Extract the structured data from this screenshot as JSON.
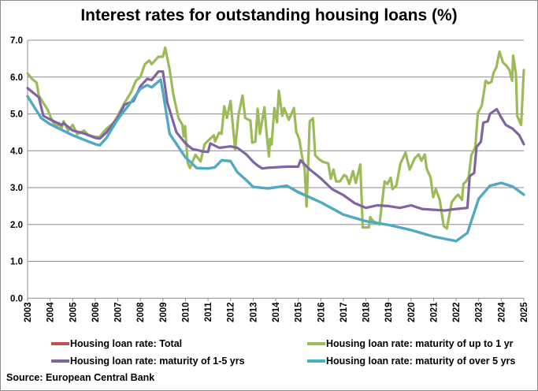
{
  "chart_data": {
    "type": "line",
    "title": "Interest rates for outstanding housing loans (%)",
    "xlabel": "",
    "ylabel": "",
    "xlim": [
      2003,
      2025
    ],
    "ylim": [
      0,
      7
    ],
    "x_ticks": [
      "2003",
      "2004",
      "2005",
      "2006",
      "2007",
      "2008",
      "2009",
      "2010",
      "2011",
      "2012",
      "2013",
      "2014",
      "2015",
      "2016",
      "2017",
      "2018",
      "2019",
      "2020",
      "2021",
      "2022",
      "2023",
      "2024",
      "2025"
    ],
    "y_ticks": [
      "0.0",
      "1.0",
      "2.0",
      "3.0",
      "4.0",
      "5.0",
      "6.0",
      "7.0"
    ],
    "grid": "horizontal",
    "legend_position": "bottom",
    "series": [
      {
        "name": "Housing loan rate: Total",
        "color": "#c0504d",
        "points": [
          [
            2003.0,
            5.48
          ],
          [
            2003.6,
            4.89
          ],
          [
            2004.0,
            4.72
          ],
          [
            2005.0,
            4.42
          ],
          [
            2006.0,
            4.18
          ],
          [
            2006.2,
            4.15
          ],
          [
            2006.5,
            4.35
          ],
          [
            2007.0,
            4.86
          ],
          [
            2007.5,
            5.25
          ],
          [
            2008.0,
            5.68
          ],
          [
            2008.3,
            5.78
          ],
          [
            2008.5,
            5.72
          ],
          [
            2008.9,
            5.93
          ],
          [
            2009.0,
            5.6
          ],
          [
            2009.3,
            4.46
          ],
          [
            2010.0,
            3.82
          ],
          [
            2010.5,
            3.53
          ],
          [
            2011.0,
            3.52
          ],
          [
            2011.3,
            3.55
          ],
          [
            2011.6,
            3.74
          ],
          [
            2012.0,
            3.72
          ],
          [
            2012.3,
            3.42
          ],
          [
            2012.7,
            3.2
          ],
          [
            2013.0,
            3.02
          ],
          [
            2013.65,
            2.98
          ],
          [
            2014.5,
            3.05
          ],
          [
            2015.0,
            2.88
          ],
          [
            2016.0,
            2.6
          ],
          [
            2017.0,
            2.27
          ],
          [
            2018.0,
            2.09
          ],
          [
            2019.0,
            1.99
          ],
          [
            2020.0,
            1.85
          ],
          [
            2021.0,
            1.67
          ],
          [
            2022.0,
            1.55
          ],
          [
            2022.5,
            1.77
          ],
          [
            2023.0,
            2.7
          ],
          [
            2023.5,
            3.05
          ],
          [
            2024.0,
            3.13
          ],
          [
            2024.5,
            3.03
          ],
          [
            2025.0,
            2.81
          ]
        ]
      },
      {
        "name": "Housing loan rate: maturity of up to 1 yr",
        "color": "#9bbb59",
        "points": [
          [
            2003.0,
            6.1
          ],
          [
            2003.2,
            5.95
          ],
          [
            2003.4,
            5.85
          ],
          [
            2003.5,
            5.5
          ],
          [
            2003.7,
            5.3
          ],
          [
            2003.9,
            5.1
          ],
          [
            2004.1,
            4.8
          ],
          [
            2004.3,
            4.65
          ],
          [
            2004.4,
            4.75
          ],
          [
            2004.5,
            4.6
          ],
          [
            2004.6,
            4.8
          ],
          [
            2004.8,
            4.55
          ],
          [
            2005.0,
            4.7
          ],
          [
            2005.2,
            4.45
          ],
          [
            2005.5,
            4.55
          ],
          [
            2005.7,
            4.42
          ],
          [
            2006.0,
            4.38
          ],
          [
            2006.2,
            4.38
          ],
          [
            2006.5,
            4.6
          ],
          [
            2006.8,
            4.75
          ],
          [
            2007.0,
            4.95
          ],
          [
            2007.3,
            5.3
          ],
          [
            2007.6,
            5.6
          ],
          [
            2007.8,
            5.9
          ],
          [
            2008.0,
            6.0
          ],
          [
            2008.2,
            6.35
          ],
          [
            2008.4,
            6.45
          ],
          [
            2008.5,
            6.35
          ],
          [
            2008.8,
            6.55
          ],
          [
            2009.0,
            6.55
          ],
          [
            2009.1,
            6.8
          ],
          [
            2009.3,
            6.2
          ],
          [
            2009.46,
            5.53
          ],
          [
            2009.69,
            4.89
          ],
          [
            2009.86,
            4.71
          ],
          [
            2009.92,
            4.39
          ],
          [
            2009.98,
            4.67
          ],
          [
            2010.1,
            3.67
          ],
          [
            2010.2,
            3.53
          ],
          [
            2010.44,
            3.89
          ],
          [
            2010.67,
            3.71
          ],
          [
            2010.85,
            4.18
          ],
          [
            2011.08,
            4.32
          ],
          [
            2011.26,
            4.42
          ],
          [
            2011.31,
            4.25
          ],
          [
            2011.49,
            4.49
          ],
          [
            2011.6,
            4.46
          ],
          [
            2011.72,
            5.21
          ],
          [
            2011.84,
            4.89
          ],
          [
            2012.0,
            5.35
          ],
          [
            2012.2,
            4.03
          ],
          [
            2012.35,
            4.96
          ],
          [
            2012.53,
            5.5
          ],
          [
            2012.65,
            4.89
          ],
          [
            2012.88,
            4.82
          ],
          [
            2012.96,
            4.22
          ],
          [
            2013.1,
            4.25
          ],
          [
            2013.2,
            5.14
          ],
          [
            2013.3,
            4.46
          ],
          [
            2013.5,
            5.18
          ],
          [
            2013.6,
            4.46
          ],
          [
            2013.7,
            3.85
          ],
          [
            2013.75,
            4.32
          ],
          [
            2013.82,
            4.17
          ],
          [
            2013.94,
            5.16
          ],
          [
            2014.06,
            4.77
          ],
          [
            2014.14,
            5.63
          ],
          [
            2014.29,
            4.95
          ],
          [
            2014.37,
            5.16
          ],
          [
            2014.58,
            4.84
          ],
          [
            2014.81,
            5.16
          ],
          [
            2014.91,
            4.52
          ],
          [
            2015.05,
            4.3
          ],
          [
            2015.16,
            3.88
          ],
          [
            2015.28,
            3.52
          ],
          [
            2015.37,
            2.49
          ],
          [
            2015.51,
            4.8
          ],
          [
            2015.65,
            4.88
          ],
          [
            2015.75,
            3.88
          ],
          [
            2015.92,
            3.77
          ],
          [
            2016.09,
            3.7
          ],
          [
            2016.33,
            3.66
          ],
          [
            2016.44,
            3.24
          ],
          [
            2016.56,
            3.49
          ],
          [
            2016.68,
            3.17
          ],
          [
            2016.85,
            3.17
          ],
          [
            2017.03,
            3.34
          ],
          [
            2017.14,
            3.3
          ],
          [
            2017.26,
            3.1
          ],
          [
            2017.43,
            3.45
          ],
          [
            2017.55,
            3.13
          ],
          [
            2017.75,
            3.63
          ],
          [
            2017.86,
            1.92
          ],
          [
            2018.13,
            1.92
          ],
          [
            2018.19,
            2.2
          ],
          [
            2018.31,
            2.1
          ],
          [
            2018.6,
            2.0
          ],
          [
            2018.83,
            3.17
          ],
          [
            2018.95,
            3.1
          ],
          [
            2019.1,
            3.27
          ],
          [
            2019.18,
            2.96
          ],
          [
            2019.35,
            3.06
          ],
          [
            2019.53,
            3.66
          ],
          [
            2019.76,
            3.95
          ],
          [
            2019.94,
            3.49
          ],
          [
            2020.17,
            3.8
          ],
          [
            2020.34,
            3.9
          ],
          [
            2020.46,
            3.73
          ],
          [
            2020.61,
            3.9
          ],
          [
            2020.69,
            3.52
          ],
          [
            2020.87,
            3.27
          ],
          [
            2020.98,
            2.74
          ],
          [
            2021.1,
            2.96
          ],
          [
            2021.27,
            2.67
          ],
          [
            2021.45,
            1.96
          ],
          [
            2021.59,
            1.89
          ],
          [
            2021.8,
            2.6
          ],
          [
            2021.97,
            2.74
          ],
          [
            2022.09,
            2.81
          ],
          [
            2022.26,
            2.67
          ],
          [
            2022.32,
            3.1
          ],
          [
            2022.44,
            3.17
          ],
          [
            2022.56,
            3.3
          ],
          [
            2022.67,
            3.88
          ],
          [
            2022.85,
            4.1
          ],
          [
            2022.96,
            5.02
          ],
          [
            2023.14,
            5.23
          ],
          [
            2023.31,
            5.9
          ],
          [
            2023.43,
            5.83
          ],
          [
            2023.57,
            5.87
          ],
          [
            2023.66,
            6.12
          ],
          [
            2023.78,
            6.26
          ],
          [
            2023.92,
            6.69
          ],
          [
            2024.07,
            6.4
          ],
          [
            2024.24,
            6.3
          ],
          [
            2024.36,
            6.19
          ],
          [
            2024.48,
            5.9
          ],
          [
            2024.53,
            6.58
          ],
          [
            2024.65,
            6.08
          ],
          [
            2024.71,
            4.94
          ],
          [
            2024.88,
            4.7
          ],
          [
            2025.0,
            6.19
          ]
        ]
      },
      {
        "name": "Housing loan rate: maturity of 1-5 yrs",
        "color": "#8064a2",
        "points": [
          [
            2003.0,
            5.7
          ],
          [
            2003.5,
            5.45
          ],
          [
            2003.7,
            4.95
          ],
          [
            2004.0,
            4.85
          ],
          [
            2004.5,
            4.7
          ],
          [
            2004.6,
            4.75
          ],
          [
            2005.0,
            4.55
          ],
          [
            2005.5,
            4.47
          ],
          [
            2006.0,
            4.35
          ],
          [
            2006.2,
            4.33
          ],
          [
            2006.5,
            4.5
          ],
          [
            2007.0,
            4.9
          ],
          [
            2007.3,
            5.25
          ],
          [
            2007.7,
            5.35
          ],
          [
            2008.0,
            5.75
          ],
          [
            2008.3,
            5.95
          ],
          [
            2008.5,
            5.92
          ],
          [
            2008.8,
            6.15
          ],
          [
            2009.0,
            6.15
          ],
          [
            2009.2,
            5.3
          ],
          [
            2009.6,
            4.5
          ],
          [
            2010.0,
            4.2
          ],
          [
            2010.3,
            4.05
          ],
          [
            2010.8,
            3.98
          ],
          [
            2011.0,
            3.97
          ],
          [
            2011.1,
            4.2
          ],
          [
            2011.5,
            4.08
          ],
          [
            2012.0,
            4.12
          ],
          [
            2012.3,
            4.08
          ],
          [
            2012.7,
            3.9
          ],
          [
            2013.0,
            3.7
          ],
          [
            2013.2,
            3.6
          ],
          [
            2013.4,
            3.52
          ],
          [
            2013.65,
            3.54
          ],
          [
            2014.5,
            3.57
          ],
          [
            2015.0,
            3.57
          ],
          [
            2015.1,
            3.74
          ],
          [
            2015.5,
            3.5
          ],
          [
            2016.0,
            3.25
          ],
          [
            2016.5,
            2.96
          ],
          [
            2017.0,
            2.8
          ],
          [
            2017.5,
            2.58
          ],
          [
            2018.0,
            2.45
          ],
          [
            2018.5,
            2.52
          ],
          [
            2019.0,
            2.5
          ],
          [
            2019.5,
            2.45
          ],
          [
            2020.0,
            2.52
          ],
          [
            2020.5,
            2.42
          ],
          [
            2021.0,
            2.4
          ],
          [
            2021.5,
            2.38
          ],
          [
            2022.0,
            2.42
          ],
          [
            2022.5,
            2.45
          ],
          [
            2022.6,
            3.31
          ],
          [
            2022.8,
            3.4
          ],
          [
            2022.9,
            4.1
          ],
          [
            2023.1,
            4.25
          ],
          [
            2023.2,
            4.76
          ],
          [
            2023.4,
            4.8
          ],
          [
            2023.5,
            5.0
          ],
          [
            2023.8,
            5.13
          ],
          [
            2024.0,
            4.9
          ],
          [
            2024.2,
            4.7
          ],
          [
            2024.5,
            4.6
          ],
          [
            2024.8,
            4.42
          ],
          [
            2025.0,
            4.18
          ]
        ]
      },
      {
        "name": "Housing loan rate: maturity of over 5 yrs",
        "color": "#4bacc6",
        "points": [
          [
            2003.0,
            5.47
          ],
          [
            2003.6,
            4.89
          ],
          [
            2004.0,
            4.72
          ],
          [
            2005.0,
            4.42
          ],
          [
            2006.0,
            4.18
          ],
          [
            2006.2,
            4.15
          ],
          [
            2006.5,
            4.35
          ],
          [
            2007.0,
            4.85
          ],
          [
            2007.5,
            5.25
          ],
          [
            2008.0,
            5.68
          ],
          [
            2008.3,
            5.78
          ],
          [
            2008.5,
            5.72
          ],
          [
            2008.9,
            5.93
          ],
          [
            2009.0,
            5.6
          ],
          [
            2009.3,
            4.46
          ],
          [
            2010.0,
            3.82
          ],
          [
            2010.5,
            3.53
          ],
          [
            2011.0,
            3.52
          ],
          [
            2011.3,
            3.55
          ],
          [
            2011.6,
            3.74
          ],
          [
            2012.0,
            3.72
          ],
          [
            2012.3,
            3.42
          ],
          [
            2012.7,
            3.2
          ],
          [
            2013.0,
            3.02
          ],
          [
            2013.65,
            2.98
          ],
          [
            2014.5,
            3.05
          ],
          [
            2015.0,
            2.87
          ],
          [
            2016.0,
            2.6
          ],
          [
            2017.0,
            2.27
          ],
          [
            2018.0,
            2.09
          ],
          [
            2019.0,
            1.99
          ],
          [
            2020.0,
            1.85
          ],
          [
            2021.0,
            1.67
          ],
          [
            2022.0,
            1.55
          ],
          [
            2022.5,
            1.77
          ],
          [
            2023.0,
            2.7
          ],
          [
            2023.5,
            3.05
          ],
          [
            2024.0,
            3.13
          ],
          [
            2024.5,
            3.03
          ],
          [
            2025.0,
            2.81
          ]
        ]
      }
    ]
  },
  "source": "Source: European Central Bank"
}
